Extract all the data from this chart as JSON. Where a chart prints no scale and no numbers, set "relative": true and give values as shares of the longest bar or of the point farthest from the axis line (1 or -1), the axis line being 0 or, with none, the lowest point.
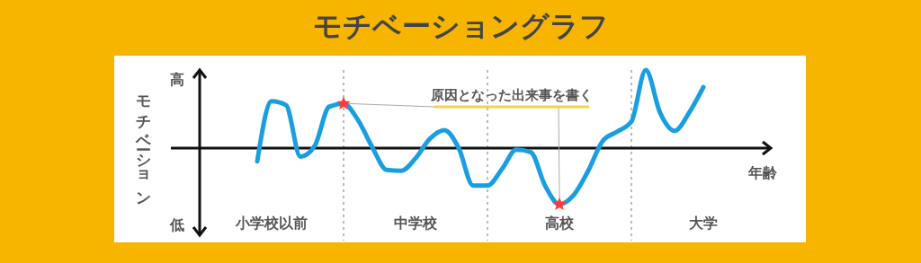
{
  "chart_data": {
    "type": "line",
    "title": "モチベーショングラフ",
    "xlabel": "年齢",
    "ylabel": "モチベーション",
    "relative": true,
    "tick_labels": "x",
    "grid": "x",
    "annotations": [
      "原因となった出来事を書く",
      "高",
      "低"
    ],
    "categories": [
      null,
      null,
      null,
      null,
      null,
      "小学校以前",
      null,
      null,
      null,
      null,
      null,
      null,
      null,
      null,
      null,
      "中学校",
      null,
      null,
      null,
      null,
      null,
      null,
      null,
      null,
      null,
      "高校",
      null,
      null,
      null,
      null,
      null,
      null,
      null,
      null,
      null,
      "大学",
      null,
      null,
      null,
      null,
      null
    ],
    "series": [
      {
        "color": "#1a9ee0",
        "marker": "none",
        "line_style": "solid",
        "values": [
          null,
          null,
          null,
          null,
          -0.17,
          0.6,
          0.55,
          -0.11,
          0.03,
          0.53,
          0.57,
          0.36,
          0.01,
          -0.28,
          -0.29,
          -0.13,
          0.12,
          0.23,
          0,
          -0.48,
          -0.48,
          -0.27,
          -0.02,
          -0.05,
          -0.48,
          -0.72,
          -0.6,
          -0.29,
          0.09,
          0.21,
          0.34,
          1,
          0.45,
          0.22,
          0.45,
          0.78,
          null,
          null,
          null,
          null,
          null
        ]
      },
      {
        "type": "scatter",
        "color": "#ff3b3b",
        "marker": "star",
        "values": [
          null,
          null,
          null,
          null,
          null,
          null,
          null,
          null,
          null,
          null,
          0.57,
          null,
          null,
          null,
          null,
          null,
          null,
          null,
          null,
          null,
          null,
          null,
          null,
          null,
          null,
          -0.72,
          null,
          null,
          null,
          null,
          null,
          null,
          null,
          null,
          null,
          null,
          null,
          null,
          null,
          null,
          null
        ]
      }
    ]
  }
}
